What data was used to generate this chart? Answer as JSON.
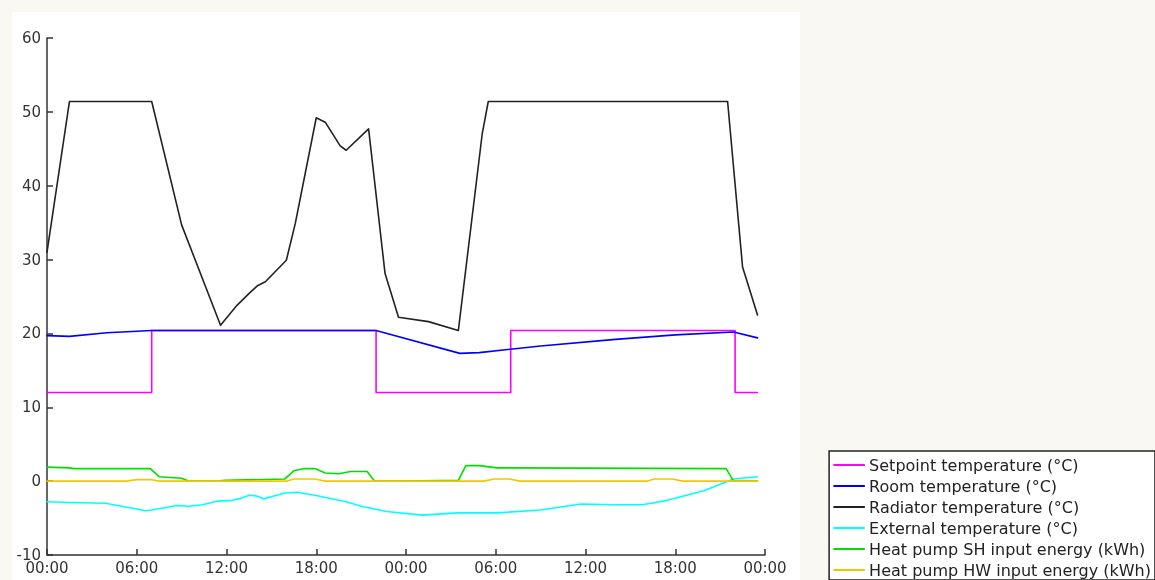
{
  "chart_data": {
    "type": "line",
    "xlim": [
      "--01-01T00:00",
      "--01-03T00:00"
    ],
    "xticks": [
      {
        "value": "--01-01T00:00",
        "label": "00:00"
      },
      {
        "value": "--01-01T06:00",
        "label": "06:00"
      },
      {
        "value": "--01-01T12:00",
        "label": "12:00"
      },
      {
        "value": "--01-01T18:00",
        "label": "18:00"
      },
      {
        "value": "--01-02T00:00",
        "label": "00:00"
      },
      {
        "value": "--01-02T06:00",
        "label": "06:00"
      },
      {
        "value": "--01-02T12:00",
        "label": "12:00"
      },
      {
        "value": "--01-02T18:00",
        "label": "18:00"
      },
      {
        "value": "--01-03T00:00",
        "label": "00:00"
      }
    ],
    "ylim": [
      -10,
      60
    ],
    "yticks": [
      -10,
      0,
      10,
      20,
      30,
      40,
      50,
      60
    ],
    "grid": false,
    "legend": "bottom right",
    "marker": "none",
    "line_style": "solid",
    "series": [
      {
        "name": "Setpoint temperature (°C)",
        "type": "step",
        "color": "#ff00ff",
        "x": [
          "--01-01T00:00",
          "--01-01T07:00",
          "--01-01T22:00",
          "--01-02T07:00",
          "--01-02T22:00",
          "--01-02T23:30"
        ],
        "values": [
          12,
          20.4,
          12,
          20.4,
          12,
          12
        ]
      },
      {
        "name": "Room temperature (°C)",
        "color": "#0000ff",
        "x": [
          "--01-01T00:00",
          "--01-01T01:30",
          "--01-01T04:00",
          "--01-01T07:00",
          "--01-01T22:00",
          "--01-02T03:36",
          "--01-02T04:54",
          "--01-02T09:00",
          "--01-02T14:00",
          "--01-02T18:00",
          "--01-02T21:54",
          "--01-02T23:30"
        ],
        "values": [
          19.7,
          19.6,
          20.1,
          20.4,
          20.4,
          17.3,
          17.4,
          18.3,
          19.2,
          19.8,
          20.2,
          19.4
        ]
      },
      {
        "name": "Radiator temperature (°C)",
        "color": "#222222",
        "x": [
          "--01-01T00:00",
          "--01-01T01:30",
          "--01-01T07:00",
          "--01-01T09:00",
          "--01-01T11:36",
          "--01-01T12:42",
          "--01-01T13:36",
          "--01-01T14:06",
          "--01-01T14:36",
          "--01-01T16:00",
          "--01-01T16:36",
          "--01-01T18:00",
          "--01-01T18:36",
          "--01-01T19:36",
          "--01-01T20:00",
          "--01-01T21:30",
          "--01-01T22:36",
          "--01-01T23:30",
          "--01-02T01:30",
          "--01-02T03:30",
          "--01-02T05:06",
          "--01-02T05:30",
          "--01-02T21:30",
          "--01-02T22:30",
          "--01-02T23:30"
        ],
        "values": [
          31,
          51.4,
          51.4,
          34.7,
          21.1,
          23.8,
          25.6,
          26.5,
          27,
          29.9,
          34.9,
          49.2,
          48.6,
          45.4,
          44.8,
          47.7,
          28.1,
          22.2,
          21.6,
          20.4,
          47.1,
          51.4,
          51.4,
          29,
          22.5
        ]
      },
      {
        "name": "External temperature (°C)",
        "color": "#00ffff",
        "x": [
          "--01-01T00:00",
          "--01-01T01:30",
          "--01-01T03:54",
          "--01-01T06:36",
          "--01-01T07:00",
          "--01-01T08:42",
          "--01-01T09:30",
          "--01-01T10:24",
          "--01-01T11:24",
          "--01-01T12:24",
          "--01-01T13:00",
          "--01-01T13:30",
          "--01-01T14:00",
          "--01-01T14:30",
          "--01-01T15:00",
          "--01-01T15:54",
          "--01-01T16:42",
          "--01-01T17:54",
          "--01-01T20:00",
          "--01-01T21:00",
          "--01-01T22:42",
          "--01-02T01:06",
          "--01-02T03:30",
          "--01-02T06:06",
          "--01-02T09:00",
          "--01-02T11:42",
          "--01-02T14:06",
          "--01-02T15:48",
          "--01-02T17:30",
          "--01-02T19:54",
          "--01-02T21:54",
          "--01-02T23:30"
        ],
        "values": [
          -2.8,
          -2.9,
          -3,
          -4,
          -3.9,
          -3.3,
          -3.4,
          -3.2,
          -2.7,
          -2.6,
          -2.3,
          -1.9,
          -2,
          -2.4,
          -2.1,
          -1.6,
          -1.5,
          -1.9,
          -2.8,
          -3.4,
          -4.1,
          -4.6,
          -4.3,
          -4.3,
          -3.9,
          -3.1,
          -3.2,
          -3.2,
          -2.6,
          -1.3,
          0.3,
          0.6
        ]
      },
      {
        "name": "Heat pump SH input energy (kWh)",
        "color": "#00e000",
        "x": [
          "--01-01T00:00",
          "--01-01T01:30",
          "--01-01T01:48",
          "--01-01T06:54",
          "--01-01T07:30",
          "--01-01T09:00",
          "--01-01T09:30",
          "--01-01T11:24",
          "--01-01T11:54",
          "--01-01T15:54",
          "--01-01T16:30",
          "--01-01T17:12",
          "--01-01T17:54",
          "--01-01T18:36",
          "--01-01T19:30",
          "--01-01T20:18",
          "--01-01T21:24",
          "--01-01T21:54",
          "--01-01T23:42",
          "--01-02T03:30",
          "--01-02T04:00",
          "--01-02T04:54",
          "--01-02T06:06",
          "--01-02T21:24",
          "--01-02T21:54",
          "--01-02T23:30"
        ],
        "values": [
          1.9,
          1.8,
          1.7,
          1.7,
          0.6,
          0.4,
          0,
          0,
          0.1,
          0.3,
          1.4,
          1.7,
          1.7,
          1.1,
          1,
          1.3,
          1.3,
          0,
          0,
          0.1,
          2.1,
          2.1,
          1.8,
          1.7,
          0,
          0
        ]
      },
      {
        "name": "Heat pump HW input energy (kWh)",
        "color": "#f0c800",
        "x": [
          "--01-01T00:00",
          "--01-01T05:18",
          "--01-01T06:00",
          "--01-01T07:00",
          "--01-01T07:30",
          "--01-01T16:00",
          "--01-01T16:30",
          "--01-01T17:54",
          "--01-01T18:36",
          "--01-02T05:12",
          "--01-02T05:54",
          "--01-02T06:54",
          "--01-02T07:36",
          "--01-02T16:06",
          "--01-02T16:36",
          "--01-02T17:48",
          "--01-02T18:30",
          "--01-02T23:30"
        ],
        "values": [
          0,
          0,
          0.2,
          0.2,
          0,
          0,
          0.3,
          0.3,
          0,
          0,
          0.3,
          0.3,
          0,
          0,
          0.3,
          0.3,
          0,
          0
        ]
      }
    ]
  }
}
